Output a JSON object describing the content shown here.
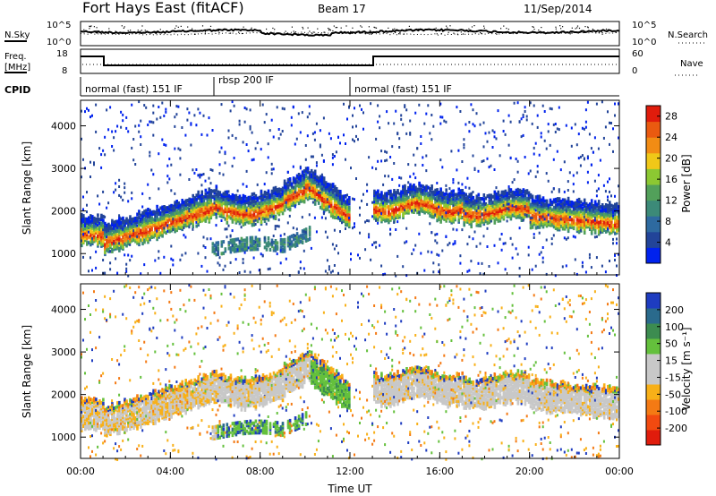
{
  "header": {
    "title": "Fort Hays East (fitACF)",
    "beam": "Beam 17",
    "date": "11/Sep/2014"
  },
  "top_panels": {
    "nsky_label": "N.Sky",
    "nsearch_label": "N.Search",
    "nsky_ticks": [
      "10^5",
      "10^0"
    ],
    "nsearch_ticks": [
      "10^5",
      "10^0"
    ],
    "freq_label_1": "Freq.",
    "freq_label_2": "[MHz]",
    "freq_ticks": [
      "18",
      "8"
    ],
    "nave_label": "Nave",
    "nave_ticks": [
      "60",
      "0"
    ],
    "cpid_label": "CPID",
    "cpid_modes": [
      "normal (fast) 151 IF",
      "rbsp 200 IF",
      "normal (fast) 151 IF"
    ]
  },
  "colors": {
    "power_scale": [
      "#0022ee",
      "#224499",
      "#2e6aa0",
      "#3c8a78",
      "#52a05a",
      "#8cc832",
      "#f0c818",
      "#f28c14",
      "#ea5a10",
      "#e01c0c"
    ],
    "velocity_scale": [
      "#e01c0c",
      "#f24a10",
      "#f47a14",
      "#f8b018",
      "#c8c8c8",
      "#c8c8c8",
      "#64c03c",
      "#3c8c50",
      "#2a6a8c",
      "#1e3cc0"
    ]
  },
  "chart_data": [
    {
      "type": "heatmap",
      "name": "power",
      "ylabel": "Slant Range [km]",
      "yticks": [
        1000,
        2000,
        3000,
        4000
      ],
      "ylim": [
        500,
        4600
      ],
      "xlim": [
        0,
        24
      ],
      "xticks": [
        "00:00",
        "04:00",
        "08:00",
        "12:00",
        "16:00",
        "20:00",
        "00:00"
      ],
      "colorbar_label": "Power [dB]",
      "colorbar_ticks": [
        4,
        8,
        12,
        16,
        20,
        24,
        28
      ],
      "colorbar_range": [
        0,
        30
      ]
    },
    {
      "type": "heatmap",
      "name": "velocity",
      "ylabel": "Slant Range [km]",
      "yticks": [
        1000,
        2000,
        3000,
        4000
      ],
      "ylim": [
        500,
        4600
      ],
      "xlim": [
        0,
        24
      ],
      "xticks": [
        "00:00",
        "04:00",
        "08:00",
        "12:00",
        "16:00",
        "20:00",
        "00:00"
      ],
      "xlabel": "Time UT",
      "colorbar_label": "Velocity [m s⁻¹]",
      "colorbar_ticks": [
        200,
        100,
        50,
        15,
        -15,
        -50,
        -100,
        -200
      ],
      "colorbar_range": [
        -250,
        250
      ]
    }
  ]
}
